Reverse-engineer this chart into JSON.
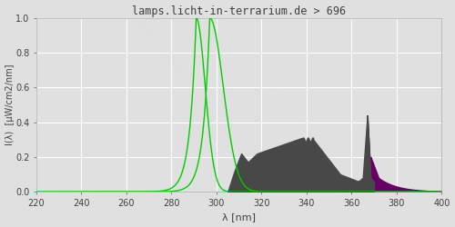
{
  "title": "lamps.licht-in-terrarium.de > 696",
  "xlabel": "λ [nm]",
  "ylabel": "I(λ)  [μW/cm2/nm]",
  "xlim": [
    220,
    400
  ],
  "ylim": [
    0.0,
    1.0
  ],
  "xticks": [
    220,
    240,
    260,
    280,
    300,
    320,
    340,
    360,
    380,
    400
  ],
  "yticks": [
    0.0,
    0.2,
    0.4,
    0.6,
    0.8,
    1.0
  ],
  "background_color": "#e0e0e0",
  "axes_face_color": "#e0e0e0",
  "grid_color": "#ffffff",
  "title_color": "#404040",
  "axis_label_color": "#404040",
  "tick_color": "#404040",
  "green_line_color": "#00cc00",
  "spectrum_dark_color": "#484848",
  "spectrum_gray_color": "#888888",
  "spectrum_purple_color": "#660066"
}
